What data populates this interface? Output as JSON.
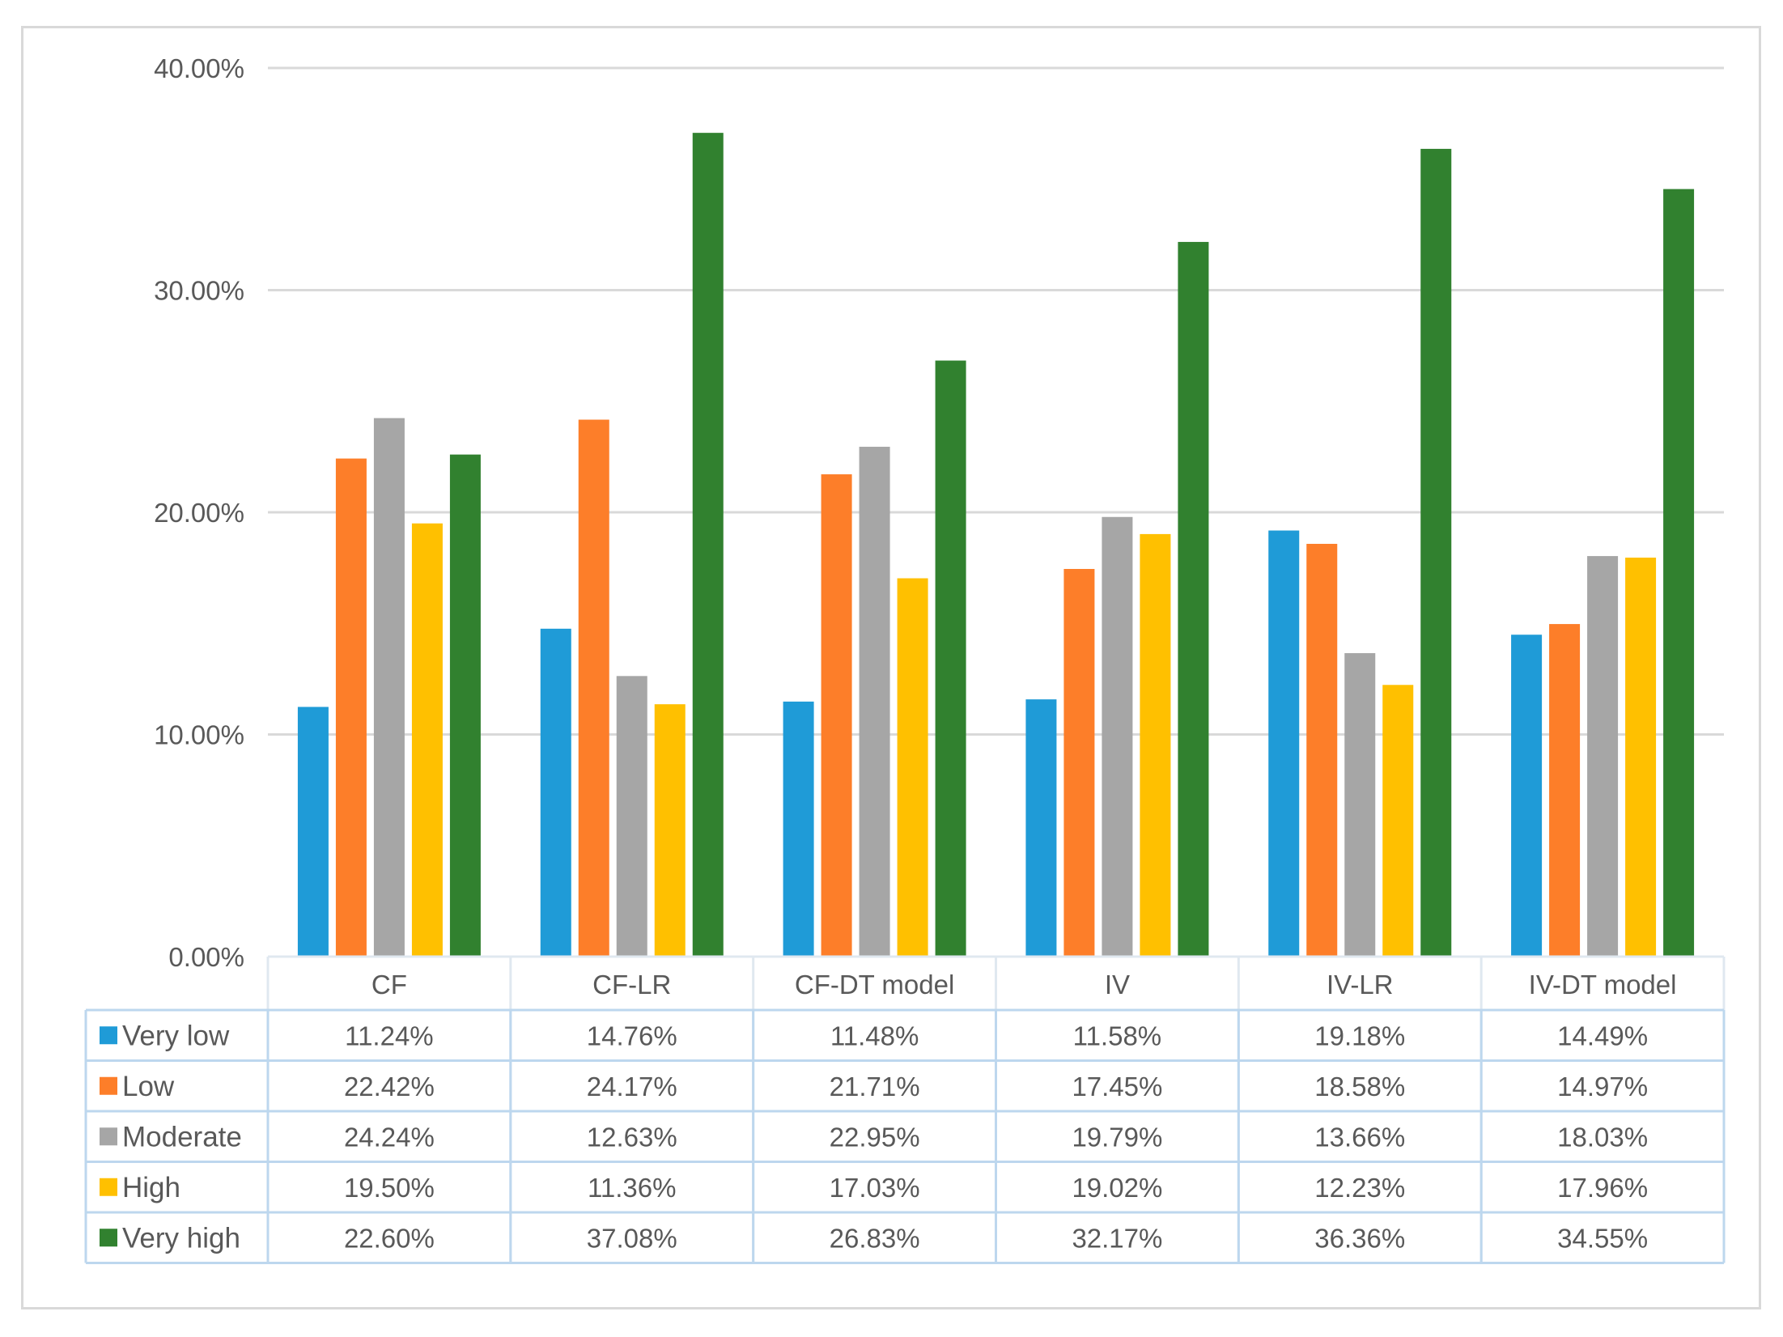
{
  "chart_data": {
    "type": "bar",
    "title": "",
    "xlabel": "",
    "ylabel": "",
    "ylim": [
      0,
      40
    ],
    "yticks": [
      0,
      10,
      20,
      30,
      40
    ],
    "ytick_labels": [
      "0.00%",
      "10.00%",
      "20.00%",
      "30.00%",
      "40.00%"
    ],
    "grid": true,
    "categories": [
      "CF",
      "CF-LR",
      "CF-DT  model",
      "IV",
      "IV-LR",
      "IV-DT  model"
    ],
    "series": [
      {
        "name": "Very low",
        "color": "#1f9bd7",
        "values": [
          11.24,
          14.76,
          11.48,
          11.58,
          19.18,
          14.49
        ],
        "labels": [
          "11.24%",
          "14.76%",
          "11.48%",
          "11.58%",
          "19.18%",
          "14.49%"
        ]
      },
      {
        "name": "Low",
        "color": "#fd7e29",
        "values": [
          22.42,
          24.17,
          21.71,
          17.45,
          18.58,
          14.97
        ],
        "labels": [
          "22.42%",
          "24.17%",
          "21.71%",
          "17.45%",
          "18.58%",
          "14.97%"
        ]
      },
      {
        "name": "Moderate",
        "color": "#a6a6a6",
        "values": [
          24.24,
          12.63,
          22.95,
          19.79,
          13.66,
          18.03
        ],
        "labels": [
          "24.24%",
          "12.63%",
          "22.95%",
          "19.79%",
          "13.66%",
          "18.03%"
        ]
      },
      {
        "name": "High",
        "color": "#ffc000",
        "values": [
          19.5,
          11.36,
          17.03,
          19.02,
          12.23,
          17.96
        ],
        "labels": [
          "19.50%",
          "11.36%",
          "17.03%",
          "19.02%",
          "12.23%",
          "17.96%"
        ]
      },
      {
        "name": "Very high",
        "color": "#31812f",
        "values": [
          22.6,
          37.08,
          26.83,
          32.17,
          36.36,
          34.55
        ],
        "labels": [
          "22.60%",
          "37.08%",
          "26.83%",
          "32.17%",
          "36.36%",
          "34.55%"
        ]
      }
    ],
    "data_table": true
  }
}
